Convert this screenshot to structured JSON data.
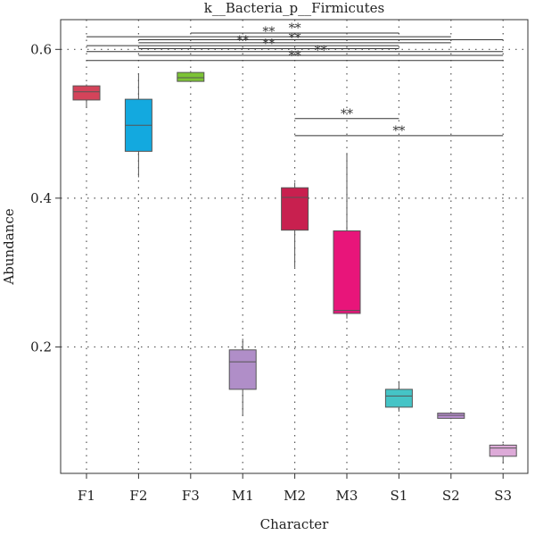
{
  "chart_data": {
    "type": "box",
    "title": "k__Bacteria_p__Firmicutes",
    "xlabel": "Character",
    "ylabel": "Abundance",
    "ylim": [
      0.03,
      0.64
    ],
    "yticks": [
      0.2,
      0.4,
      0.6
    ],
    "ytick_labels": [
      "0.2",
      "0.4",
      "0.6"
    ],
    "grid": true,
    "categories": [
      "F1",
      "F2",
      "F3",
      "M1",
      "M2",
      "M3",
      "S1",
      "S2",
      "S3"
    ],
    "boxes": [
      {
        "label": "F1",
        "min": 0.522,
        "q1": 0.532,
        "median": 0.543,
        "q3": 0.551,
        "max": 0.553,
        "color": "#d4435a"
      },
      {
        "label": "F2",
        "min": 0.428,
        "q1": 0.463,
        "median": 0.498,
        "q3": 0.533,
        "max": 0.568,
        "color": "#13a9df"
      },
      {
        "label": "F3",
        "min": 0.556,
        "q1": 0.557,
        "median": 0.562,
        "q3": 0.569,
        "max": 0.571,
        "color": "#7cc334"
      },
      {
        "label": "M1",
        "min": 0.108,
        "q1": 0.143,
        "median": 0.18,
        "q3": 0.196,
        "max": 0.211,
        "color": "#b08ec8"
      },
      {
        "label": "M2",
        "min": 0.307,
        "q1": 0.357,
        "median": 0.401,
        "q3": 0.414,
        "max": 0.421,
        "color": "#c8204f"
      },
      {
        "label": "M3",
        "min": 0.238,
        "q1": 0.245,
        "median": 0.249,
        "q3": 0.356,
        "max": 0.461,
        "color": "#e8157a"
      },
      {
        "label": "S1",
        "min": 0.113,
        "q1": 0.119,
        "median": 0.134,
        "q3": 0.143,
        "max": 0.154,
        "color": "#45c4c6"
      },
      {
        "label": "S2",
        "min": 0.103,
        "q1": 0.104,
        "median": 0.108,
        "q3": 0.111,
        "max": 0.113,
        "color": "#b98ecf"
      },
      {
        "label": "S3",
        "min": 0.043,
        "q1": 0.053,
        "median": 0.064,
        "q3": 0.068,
        "max": 0.07,
        "color": "#ddaad8"
      }
    ],
    "significance": [
      {
        "from": "F1",
        "to": "S2",
        "y": 0.617,
        "label": "**"
      },
      {
        "from": "F2",
        "to": "S3",
        "y": 0.613,
        "label": ""
      },
      {
        "from": "F3",
        "to": "S1",
        "y": 0.622,
        "label": "**"
      },
      {
        "from": "F2",
        "to": "S2",
        "y": 0.609,
        "label": "**"
      },
      {
        "from": "F1",
        "to": "S1",
        "y": 0.605,
        "label": "**"
      },
      {
        "from": "F2",
        "to": "S1",
        "y": 0.601,
        "label": "**"
      },
      {
        "from": "F1",
        "to": "S3",
        "y": 0.597,
        "label": ""
      },
      {
        "from": "F2",
        "to": "S3",
        "y": 0.592,
        "label": "**"
      },
      {
        "from": "F1",
        "to": "S3",
        "y": 0.585,
        "label": "**"
      },
      {
        "from": "M2",
        "to": "S1",
        "y": 0.507,
        "label": "**"
      },
      {
        "from": "M2",
        "to": "S3",
        "y": 0.484,
        "label": "**"
      }
    ]
  },
  "colors": {
    "whisker": "#555555",
    "grid": "#555555",
    "sig_line": "#333333",
    "frame": "#333333"
  }
}
